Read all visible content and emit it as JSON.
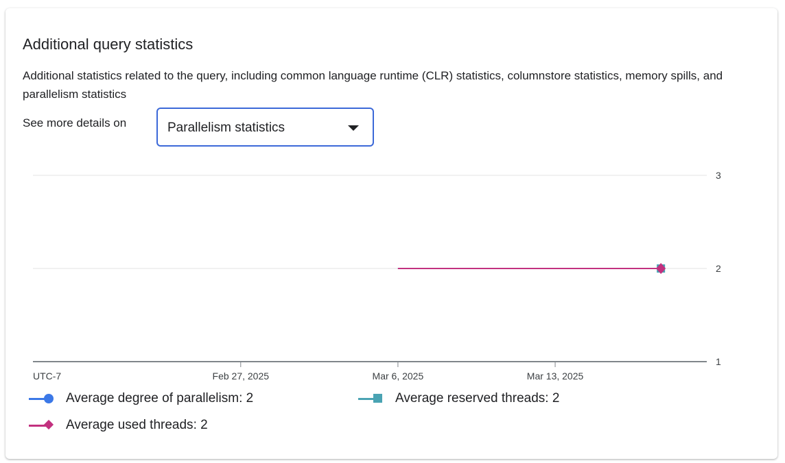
{
  "card": {
    "title": "Additional query statistics",
    "description": "Additional statistics related to the query, including common language runtime (CLR) statistics, columnstore statistics, memory spills, and parallelism statistics",
    "see_more_label": "See more details on",
    "dropdown": {
      "selected": "Parallelism statistics"
    }
  },
  "chart_data": {
    "type": "line",
    "timezone_label": "UTC-7",
    "xlim": [
      "2025-02-17T18:00",
      "2025-03-19T18:00"
    ],
    "ylim": [
      1,
      3
    ],
    "y_ticks": [
      "1",
      "2",
      "3"
    ],
    "x_ticks": [
      {
        "date": "2025-02-27T00:00",
        "label": "Feb 27, 2025"
      },
      {
        "date": "2025-03-06T00:00",
        "label": "Mar 6, 2025"
      },
      {
        "date": "2025-03-13T00:00",
        "label": "Mar 13, 2025"
      }
    ],
    "grid": true,
    "legend_position": "bottom",
    "series": [
      {
        "name": "Average degree of parallelism",
        "value_label": "2",
        "color": "#3b78e7",
        "marker": "circle",
        "x": [
          "2025-03-06T00:00",
          "2025-03-17T17:00"
        ],
        "y": [
          2,
          2
        ]
      },
      {
        "name": "Average reserved threads",
        "value_label": "2",
        "color": "#4aa3b3",
        "marker": "square",
        "x": [
          "2025-03-06T00:00",
          "2025-03-17T17:00"
        ],
        "y": [
          2,
          2
        ]
      },
      {
        "name": "Average used threads",
        "value_label": "2",
        "color": "#c2317f",
        "marker": "diamond",
        "x": [
          "2025-03-06T00:00",
          "2025-03-17T17:00"
        ],
        "y": [
          2,
          2
        ]
      }
    ]
  }
}
